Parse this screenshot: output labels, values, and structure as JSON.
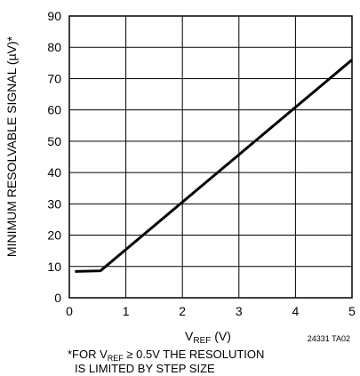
{
  "chart_data": {
    "type": "line",
    "xlabel_main": "V",
    "xlabel_sub": "REF",
    "xlabel_unit": " (V)",
    "ylabel": "MINIMUM RESOLVABLE SIGNAL (µV)*",
    "xlim": [
      0,
      5
    ],
    "ylim": [
      0,
      90
    ],
    "x_ticks": [
      0,
      1,
      2,
      3,
      4,
      5
    ],
    "y_ticks": [
      0,
      10,
      20,
      30,
      40,
      50,
      60,
      70,
      80,
      90
    ],
    "grid": true,
    "series": [
      {
        "points": [
          [
            0.1,
            8.4
          ],
          [
            0.55,
            8.6
          ],
          [
            5.0,
            76.0
          ]
        ]
      }
    ],
    "code": "24331 TA02"
  },
  "footnote": {
    "line1_pre": "*FOR V",
    "line1_sub": "REF",
    "line1_post": " ≥ 0.5V THE RESOLUTION",
    "line2": "IS LIMITED BY STEP SIZE"
  },
  "colors": {
    "grid": "#000000",
    "line": "#000000"
  }
}
